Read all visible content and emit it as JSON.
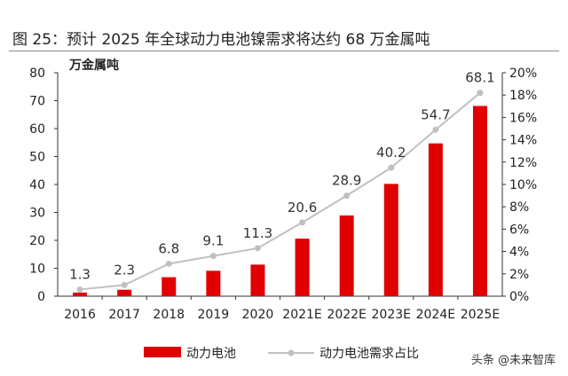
{
  "title": "图 25：预计 2025 年全球动力电池镍需求将达约 68 万金属吨",
  "watermark": "头条 @未来智库",
  "chart_data": {
    "type": "bar+line",
    "categories": [
      "2016",
      "2017",
      "2018",
      "2019",
      "2020",
      "2021E",
      "2022E",
      "2023E",
      "2024E",
      "2025E"
    ],
    "ylabel": "万金属吨",
    "ylim": [
      0,
      80
    ],
    "yticks": [
      0,
      10,
      20,
      30,
      40,
      50,
      60,
      70,
      80
    ],
    "y2lim": [
      0,
      20
    ],
    "y2ticks": [
      "0%",
      "2%",
      "4%",
      "6%",
      "8%",
      "10%",
      "12%",
      "14%",
      "16%",
      "18%",
      "20%"
    ],
    "legend_position": "bottom",
    "grid": false,
    "series": [
      {
        "name": "动力电池",
        "type": "bar",
        "axis": "left",
        "color": "#e00000",
        "values": [
          1.3,
          2.3,
          6.8,
          9.1,
          11.3,
          20.6,
          28.9,
          40.2,
          54.7,
          68.1
        ]
      },
      {
        "name": "动力电池需求占比",
        "type": "line",
        "axis": "right",
        "color": "#c0c0c0",
        "values": [
          0.6,
          1.0,
          2.9,
          3.6,
          4.3,
          6.6,
          9.0,
          11.5,
          14.9,
          18.2
        ]
      }
    ]
  }
}
